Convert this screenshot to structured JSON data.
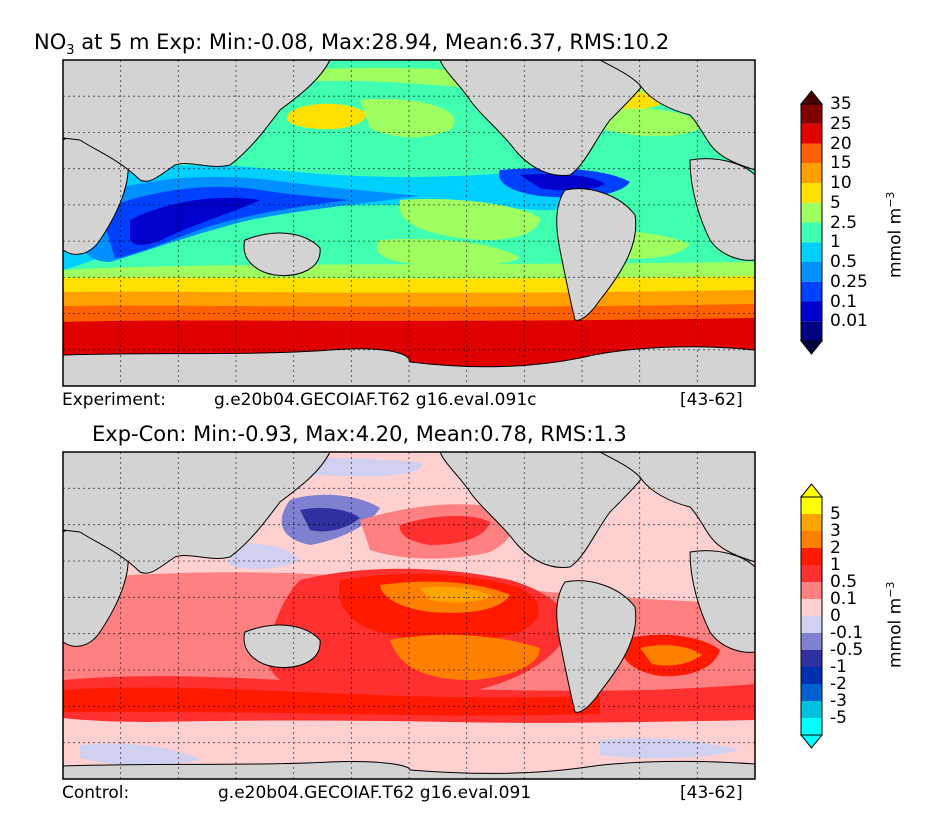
{
  "panel_top": {
    "title_species": "NO",
    "title_sub": "3",
    "title_rest": " at 5 m Exp: Min:-0.08, Max:28.94, Mean:6.37, RMS:10.2",
    "footer_left": "Experiment:",
    "footer_mid": "g.e20b04.GECOIAF.T62 g16.eval.091c",
    "footer_right": "[43-62]"
  },
  "panel_bottom": {
    "title": "Exp-Con: Min:-0.93, Max:4.20, Mean:0.78, RMS:1.3",
    "footer_left": "Control:",
    "footer_mid": "g.e20b04.GECOIAF.T62 g16.eval.091",
    "footer_right": "[43-62]"
  },
  "colorbar_unit": {
    "base": "mmol m",
    "exp": "−3"
  },
  "chart_data": [
    {
      "type": "heatmap",
      "map_projection": "global lat-lon",
      "grid": true,
      "land_color": "#d3d3d3",
      "colorbar": {
        "extend": "both",
        "levels": [
          "0.01",
          "0.1",
          "0.25",
          "0.5",
          "1",
          "2.5",
          "5",
          "10",
          "15",
          "20",
          "25",
          "35"
        ],
        "colors": [
          "#000080",
          "#0000cd",
          "#0040ff",
          "#0090ff",
          "#00d0ff",
          "#40ffb0",
          "#a0ff60",
          "#ffe000",
          "#ffa000",
          "#ff6000",
          "#e00000",
          "#800000"
        ],
        "under_color": "#00003a",
        "over_color": "#4a0000"
      }
    },
    {
      "type": "heatmap",
      "map_projection": "global lat-lon",
      "grid": true,
      "land_color": "#d3d3d3",
      "colorbar": {
        "extend": "both",
        "levels": [
          "-5",
          "-3",
          "-2",
          "-1",
          "-0.5",
          "-0.1",
          "0",
          "0.1",
          "0.5",
          "1",
          "2",
          "3",
          "5"
        ],
        "colors": [
          "#00ffff",
          "#00c0e0",
          "#0060d0",
          "#0030b0",
          "#3030a0",
          "#8080d0",
          "#d0d0f0",
          "#ffd0d0",
          "#ff8080",
          "#ff3030",
          "#ff1a00",
          "#ff8000",
          "#ffa500",
          "#ffff00"
        ],
        "under_color": "#00ffff",
        "over_color": "#ffff00"
      }
    }
  ]
}
